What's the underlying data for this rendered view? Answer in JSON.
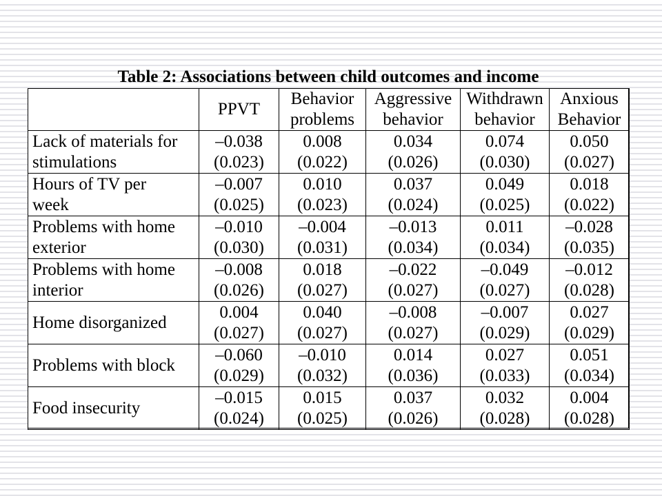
{
  "title": "Table 2: Associations between child outcomes and income",
  "table": {
    "columns": [
      {
        "line1": "",
        "line2": "PPVT"
      },
      {
        "line1": "Behavior",
        "line2": "problems"
      },
      {
        "line1": "Aggressive",
        "line2": "behavior"
      },
      {
        "line1": "Withdrawn",
        "line2": "behavior"
      },
      {
        "line1": "Anxious",
        "line2": "Behavior"
      }
    ],
    "rows": [
      {
        "label": [
          "Lack of materials for",
          "stimulations"
        ],
        "cells": [
          {
            "coef": "–0.038",
            "se": "(0.023)"
          },
          {
            "coef": "0.008",
            "se": "(0.022)"
          },
          {
            "coef": "0.034",
            "se": "(0.026)"
          },
          {
            "coef": "0.074",
            "se": "(0.030)"
          },
          {
            "coef": "0.050",
            "se": "(0.027)"
          }
        ]
      },
      {
        "label": [
          "Hours of TV per",
          "week"
        ],
        "cells": [
          {
            "coef": "–0.007",
            "se": "(0.025)"
          },
          {
            "coef": "0.010",
            "se": "(0.023)"
          },
          {
            "coef": "0.037",
            "se": "(0.024)"
          },
          {
            "coef": "0.049",
            "se": "(0.025)"
          },
          {
            "coef": "0.018",
            "se": "(0.022)"
          }
        ]
      },
      {
        "label": [
          "Problems with home",
          "exterior"
        ],
        "cells": [
          {
            "coef": "–0.010",
            "se": "(0.030)"
          },
          {
            "coef": "–0.004",
            "se": "(0.031)"
          },
          {
            "coef": "–0.013",
            "se": "(0.034)"
          },
          {
            "coef": "0.011",
            "se": "(0.034)"
          },
          {
            "coef": "–0.028",
            "se": "(0.035)"
          }
        ]
      },
      {
        "label": [
          "Problems with home",
          "interior"
        ],
        "cells": [
          {
            "coef": "–0.008",
            "se": "(0.026)"
          },
          {
            "coef": "0.018",
            "se": "(0.027)"
          },
          {
            "coef": "–0.022",
            "se": "(0.027)"
          },
          {
            "coef": "–0.049",
            "se": "(0.027)"
          },
          {
            "coef": "–0.012",
            "se": "(0.028)"
          }
        ]
      },
      {
        "label": [
          "Home disorganized"
        ],
        "cells": [
          {
            "coef": "0.004",
            "se": "(0.027)"
          },
          {
            "coef": "0.040",
            "se": "(0.027)"
          },
          {
            "coef": "–0.008",
            "se": "(0.027)"
          },
          {
            "coef": "–0.007",
            "se": "(0.029)"
          },
          {
            "coef": "0.027",
            "se": "(0.029)"
          }
        ]
      },
      {
        "label": [
          "Problems with block"
        ],
        "cells": [
          {
            "coef": "–0.060",
            "se": "(0.029)"
          },
          {
            "coef": "–0.010",
            "se": "(0.032)"
          },
          {
            "coef": "0.014",
            "se": "(0.036)"
          },
          {
            "coef": "0.027",
            "se": "(0.033)"
          },
          {
            "coef": "0.051",
            "se": "(0.034)"
          }
        ]
      },
      {
        "label": [
          "Food insecurity"
        ],
        "cells": [
          {
            "coef": "–0.015",
            "se": "(0.024)"
          },
          {
            "coef": "0.015",
            "se": "(0.025)"
          },
          {
            "coef": "0.037",
            "se": "(0.026)"
          },
          {
            "coef": "0.032",
            "se": "(0.028)"
          },
          {
            "coef": "0.004",
            "se": "(0.028)"
          }
        ]
      }
    ]
  }
}
